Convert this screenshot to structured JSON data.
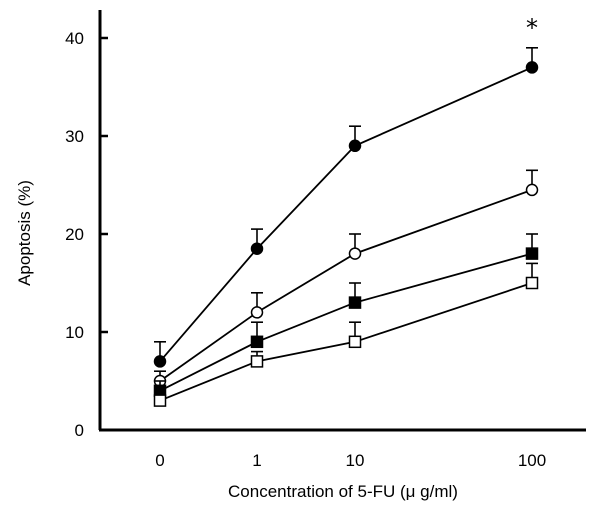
{
  "chart_data": {
    "type": "line",
    "categories": [
      "0",
      "1",
      "10",
      "100"
    ],
    "xlabel": "Concentration of 5-FU (μ g/ml)",
    "ylabel": "Apoptosis (%)",
    "ylim": [
      0,
      40
    ],
    "yticks": [
      "0",
      "10",
      "20",
      "30",
      "40"
    ],
    "grid": false,
    "legend": "none",
    "series": [
      {
        "marker": "filled-circle",
        "color": "#000000",
        "values": [
          7,
          18.5,
          29,
          37
        ],
        "errors": [
          2,
          2,
          2,
          2
        ]
      },
      {
        "marker": "open-circle",
        "color": "#000000",
        "values": [
          5,
          12,
          18,
          24.5
        ],
        "errors": [
          1,
          2,
          2,
          2
        ]
      },
      {
        "marker": "filled-square",
        "color": "#000000",
        "values": [
          4,
          9,
          13,
          18
        ],
        "errors": [
          1,
          2,
          2,
          2
        ]
      },
      {
        "marker": "open-square",
        "color": "#000000",
        "values": [
          3,
          7,
          9,
          15
        ],
        "errors": [
          1,
          1,
          2,
          2
        ]
      }
    ],
    "annotations": [
      {
        "text": "*",
        "category": "100",
        "series_index": 0
      }
    ]
  }
}
